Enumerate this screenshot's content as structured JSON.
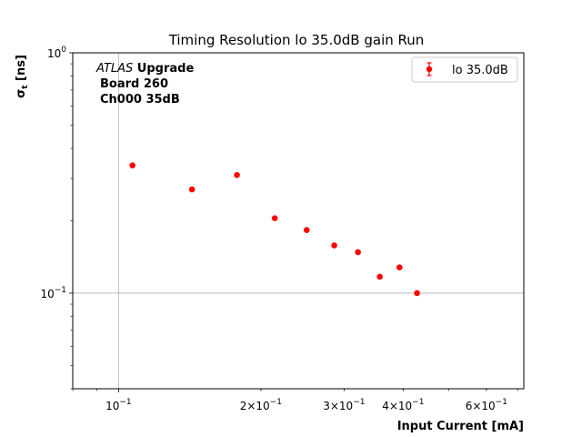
{
  "chart_data": {
    "type": "scatter",
    "title": "Timing Resolution lo 35.0dB gain Run",
    "xlabel": "Input Current [mA]",
    "ylabel_main": "σ",
    "ylabel_sub": "t",
    "ylabel_unit": " [ns]",
    "x_scale": "log",
    "y_scale": "log",
    "xlim": [
      0.08,
      0.72
    ],
    "ylim": [
      0.04,
      1.0
    ],
    "x_ticks": [
      {
        "value": 0.1,
        "base": "10",
        "exp": "−1",
        "mant": ""
      },
      {
        "value": 0.2,
        "base": "10",
        "exp": "−1",
        "mant": "2×"
      },
      {
        "value": 0.3,
        "base": "10",
        "exp": "−1",
        "mant": "3×"
      },
      {
        "value": 0.4,
        "base": "10",
        "exp": "−1",
        "mant": "4×"
      },
      {
        "value": 0.6,
        "base": "10",
        "exp": "−1",
        "mant": "6×"
      }
    ],
    "y_ticks": [
      {
        "value": 1.0,
        "base": "10",
        "exp": "0"
      },
      {
        "value": 0.1,
        "base": "10",
        "exp": "−1"
      }
    ],
    "grid": true,
    "legend_position": "top-right",
    "series": [
      {
        "name": "lo 35.0dB",
        "color": "#ff0000",
        "x": [
          0.107,
          0.143,
          0.178,
          0.214,
          0.25,
          0.286,
          0.321,
          0.357,
          0.393,
          0.428
        ],
        "y": [
          0.34,
          0.27,
          0.31,
          0.205,
          0.183,
          0.158,
          0.148,
          0.117,
          0.128,
          0.1
        ]
      }
    ],
    "annotation": {
      "line1_italic": "ATLAS",
      "line1_bold": " Upgrade",
      "line2": "Board 260",
      "line3": "Ch000 35dB"
    }
  }
}
